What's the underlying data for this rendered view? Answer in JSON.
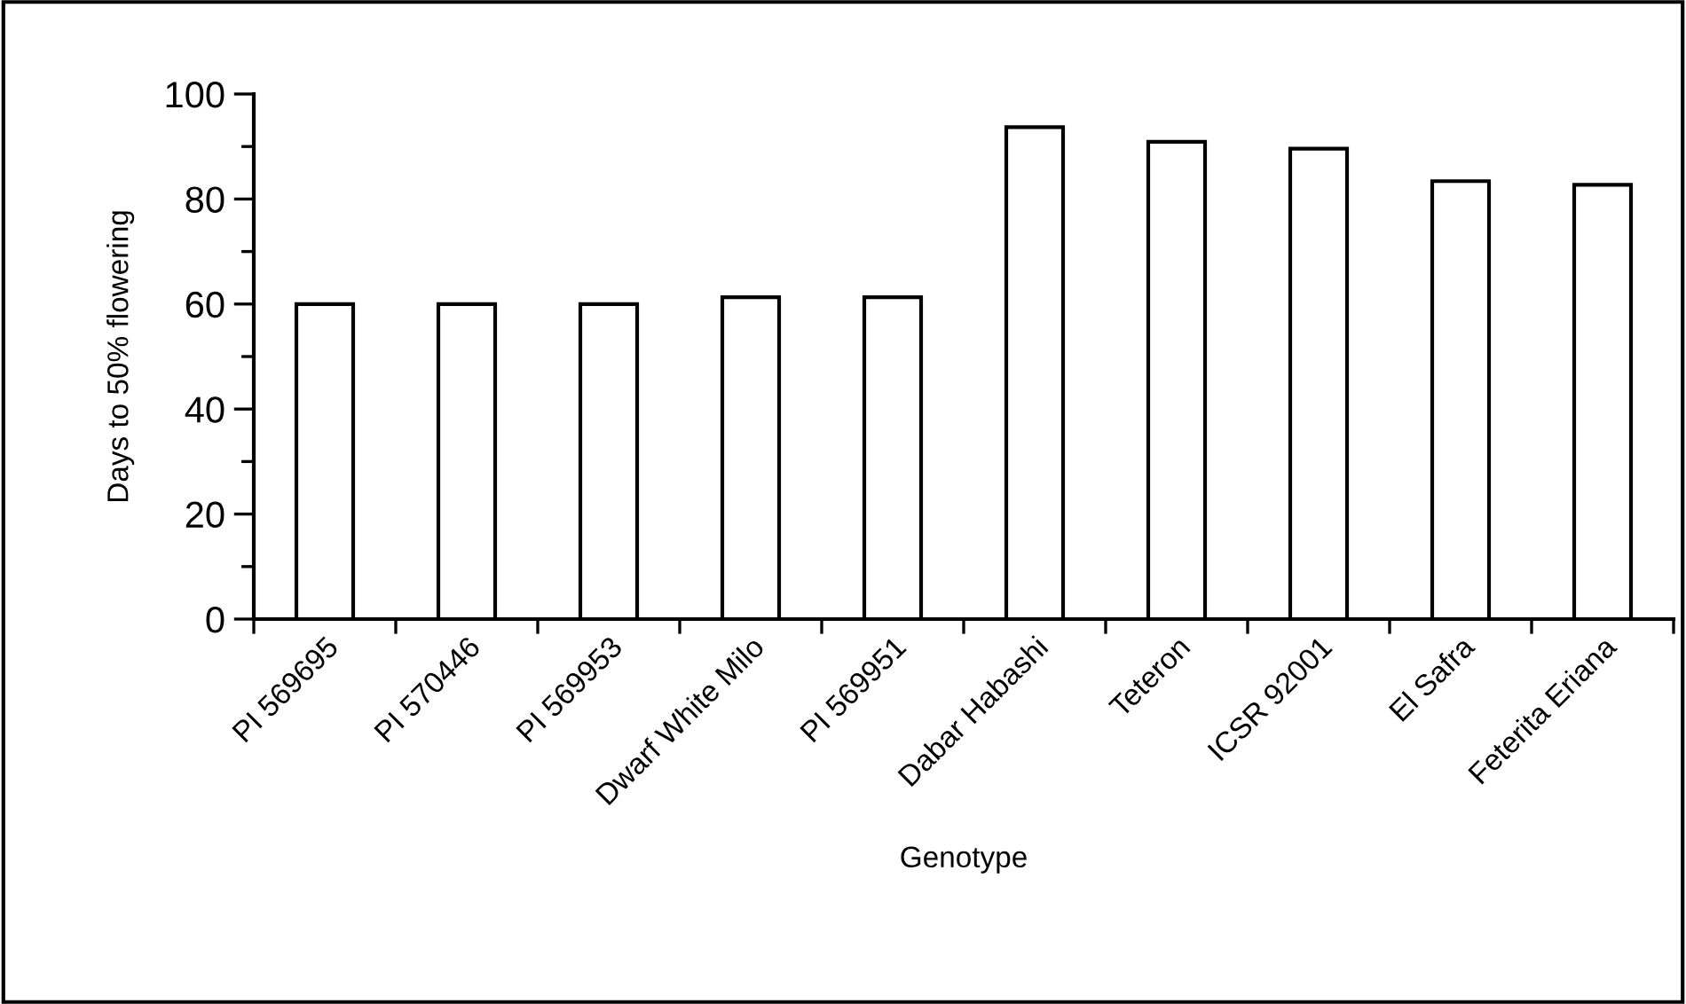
{
  "chart_data": {
    "type": "bar",
    "categories": [
      "PI 569695",
      "PI 570446",
      "PI 569953",
      "Dwarf White Milo",
      "PI 569951",
      "Dabar Habashi",
      "Teteron",
      "ICSR 92001",
      "El Safra",
      "Feterita Eriana"
    ],
    "values": [
      60,
      60,
      60,
      61.3,
      61.3,
      93.7,
      90.9,
      89.6,
      83.4,
      82.7
    ],
    "color": "#ffffff",
    "xlabel": "Genotype",
    "ylabel": "Days to 50% flowering",
    "ylim": [
      0,
      100
    ],
    "yticks": [
      0,
      20,
      40,
      60,
      80,
      100
    ],
    "grid": false,
    "legend": false
  }
}
